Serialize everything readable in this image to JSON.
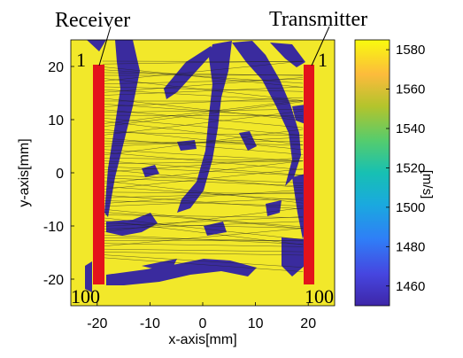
{
  "annotations": {
    "receiver_label": "Receiver",
    "transmitter_label": "Transmitter",
    "receiver_top_index": "1",
    "receiver_bottom_index": "100",
    "transmitter_top_index": "1",
    "transmitter_bottom_index": "100"
  },
  "axes": {
    "xlabel": "x-axis[mm]",
    "ylabel": "y-axis[mm]",
    "xlim": [
      -25,
      25
    ],
    "ylim": [
      -25,
      25
    ],
    "xticks": [
      "-20",
      "-10",
      "0",
      "10",
      "20"
    ],
    "yticks": [
      "20",
      "10",
      "0",
      "-10",
      "-20"
    ]
  },
  "colorbar": {
    "unit": "[m/s]",
    "range": [
      1450,
      1585
    ],
    "ticks": [
      "1580",
      "1560",
      "1540",
      "1520",
      "1500",
      "1480",
      "1460"
    ]
  },
  "colors": {
    "background_medium": "#f2e82a",
    "inclusions": "#3a2b9e",
    "array_elements": "#e3131b",
    "ray_paths": "#222222"
  },
  "arrays": {
    "receiver_x_mm": -20,
    "transmitter_x_mm": 20,
    "element_span_mm": [
      -21,
      21
    ]
  }
}
